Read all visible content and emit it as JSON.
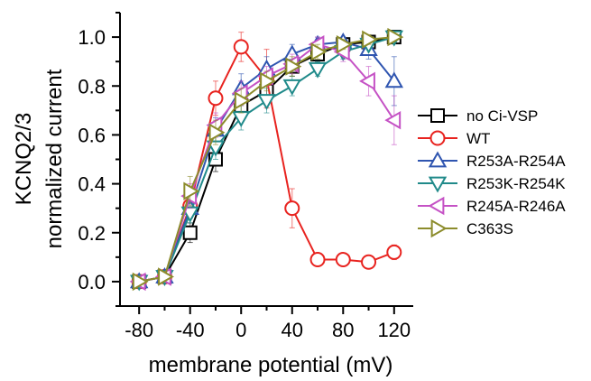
{
  "chart_data": {
    "type": "line",
    "title": "",
    "xlabel": "membrane potential (mV)",
    "ylabel_line1": "KCNQ2/3",
    "ylabel_line2": "normalized current",
    "xlim": [
      -95,
      135
    ],
    "ylim": [
      -0.1,
      1.1
    ],
    "x_ticks": [
      -80,
      -40,
      0,
      40,
      80,
      120
    ],
    "x_tick_labels": [
      "-80",
      "-40",
      "0",
      "40",
      "80",
      "120"
    ],
    "y_ticks": [
      0.0,
      0.2,
      0.4,
      0.6,
      0.8,
      1.0
    ],
    "y_tick_labels": [
      "0.0",
      "0.2",
      "0.4",
      "0.6",
      "0.8",
      "1.0"
    ],
    "grid": false,
    "legend_position": "right",
    "series": [
      {
        "name": "no Ci-VSP",
        "color": "#000000",
        "marker": "square",
        "x": [
          -80,
          -60,
          -40,
          -20,
          0,
          20,
          40,
          60,
          80,
          100,
          120
        ],
        "y": [
          0.0,
          0.02,
          0.2,
          0.5,
          0.72,
          0.78,
          0.88,
          0.93,
          0.97,
          0.98,
          1.0
        ],
        "err": [
          0.01,
          0.01,
          0.04,
          0.05,
          0.05,
          0.04,
          0.04,
          0.03,
          0.02,
          0.02,
          0.01
        ]
      },
      {
        "name": "WT",
        "color": "#e8231f",
        "marker": "circle",
        "x": [
          -80,
          -60,
          -40,
          -20,
          0,
          20,
          40,
          60,
          80,
          100,
          120
        ],
        "y": [
          0.0,
          0.02,
          0.31,
          0.75,
          0.96,
          0.83,
          0.3,
          0.09,
          0.09,
          0.08,
          0.12
        ],
        "err": [
          0.01,
          0.01,
          0.05,
          0.07,
          0.06,
          0.12,
          0.08,
          0.01,
          0.01,
          0.01,
          0.03
        ]
      },
      {
        "name": "R253A-R254A",
        "color": "#2f55b0",
        "marker": "triangle-up",
        "x": [
          -80,
          -60,
          -40,
          -20,
          0,
          20,
          40,
          60,
          80,
          100,
          120
        ],
        "y": [
          0.0,
          0.02,
          0.3,
          0.62,
          0.79,
          0.87,
          0.93,
          0.97,
          0.98,
          0.95,
          0.82
        ],
        "err": [
          0.01,
          0.01,
          0.04,
          0.05,
          0.06,
          0.05,
          0.04,
          0.03,
          0.02,
          0.04,
          0.1
        ]
      },
      {
        "name": "R253K-R254K",
        "color": "#208a8a",
        "marker": "triangle-down",
        "x": [
          -80,
          -60,
          -40,
          -20,
          0,
          20,
          40,
          60,
          80,
          100,
          120
        ],
        "y": [
          0.0,
          0.02,
          0.28,
          0.55,
          0.67,
          0.74,
          0.8,
          0.87,
          0.94,
          0.97,
          1.0
        ],
        "err": [
          0.01,
          0.01,
          0.04,
          0.05,
          0.05,
          0.05,
          0.04,
          0.03,
          0.03,
          0.02,
          0.01
        ]
      },
      {
        "name": "R245A-R246A",
        "color": "#c552c5",
        "marker": "triangle-left",
        "x": [
          -80,
          -60,
          -40,
          -20,
          0,
          20,
          40,
          60,
          80,
          100,
          120
        ],
        "y": [
          0.0,
          0.02,
          0.35,
          0.64,
          0.77,
          0.84,
          0.89,
          0.97,
          0.94,
          0.82,
          0.66
        ],
        "err": [
          0.01,
          0.01,
          0.05,
          0.05,
          0.05,
          0.04,
          0.04,
          0.03,
          0.04,
          0.06,
          0.1
        ]
      },
      {
        "name": "C363S",
        "color": "#8c8c2c",
        "marker": "triangle-right",
        "x": [
          -80,
          -60,
          -40,
          -20,
          0,
          20,
          40,
          60,
          80,
          100,
          120
        ],
        "y": [
          0.0,
          0.02,
          0.37,
          0.61,
          0.74,
          0.82,
          0.88,
          0.94,
          0.97,
          0.99,
          1.0
        ],
        "err": [
          0.01,
          0.01,
          0.06,
          0.05,
          0.05,
          0.04,
          0.04,
          0.03,
          0.02,
          0.02,
          0.01
        ]
      }
    ]
  }
}
